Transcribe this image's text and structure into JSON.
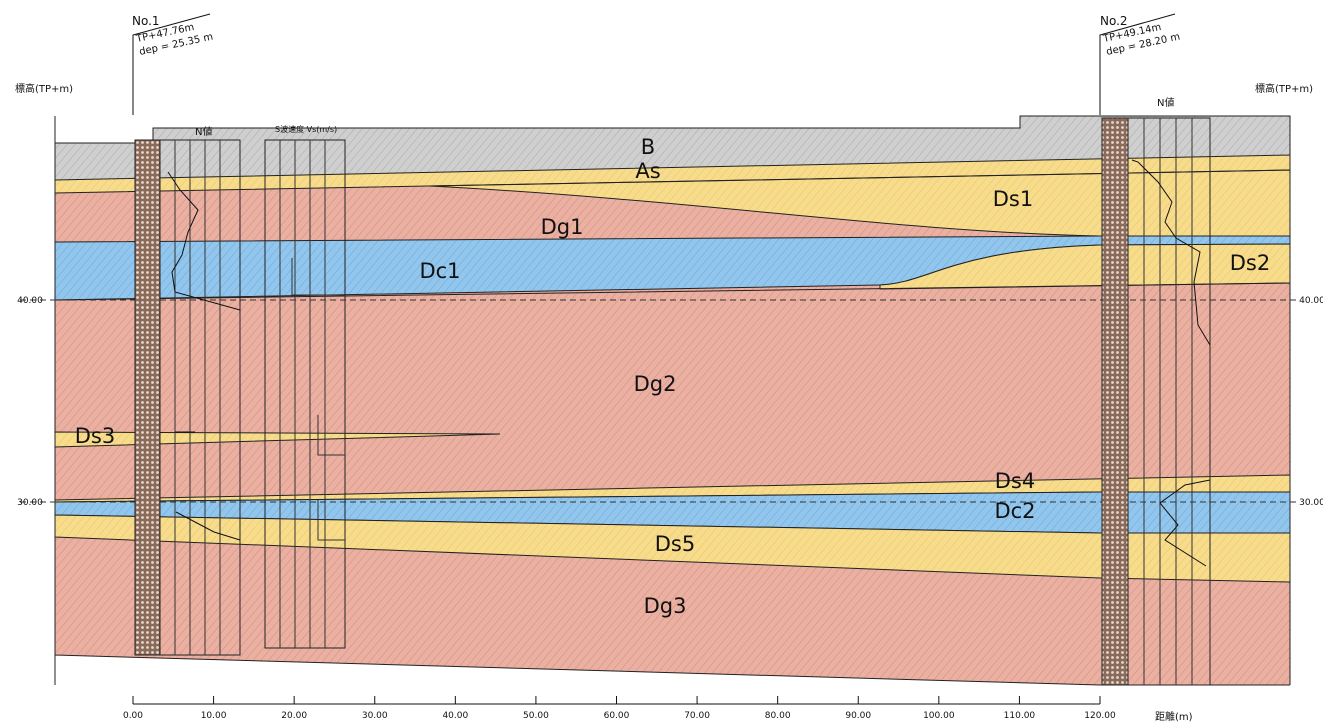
{
  "boreholes": [
    {
      "name": "No.1",
      "elevation": "TP+47.76m",
      "depth": "dep = 25.35 m",
      "n_label": "N値"
    },
    {
      "name": "No.2",
      "elevation": "TP+49.14m",
      "depth": "dep = 28.20 m",
      "n_label": "N値"
    }
  ],
  "vs_label": "S波速度 Vs(m/s)",
  "elevation_axis": {
    "label": "標高(TP+m)",
    "ticks": [
      "40.00",
      "30.00"
    ]
  },
  "distance_axis": {
    "label": "距離(m)",
    "ticks": [
      "0.00",
      "10.00",
      "20.00",
      "30.00",
      "40.00",
      "50.00",
      "60.00",
      "70.00",
      "80.00",
      "90.00",
      "100.00",
      "110.00",
      "120.00"
    ]
  },
  "layers": [
    "B",
    "As",
    "Dg1",
    "Dc1",
    "Dg2",
    "Ds3",
    "Ds4",
    "Dc2",
    "Ds5",
    "Dg3",
    "Ds1",
    "Ds2"
  ]
}
